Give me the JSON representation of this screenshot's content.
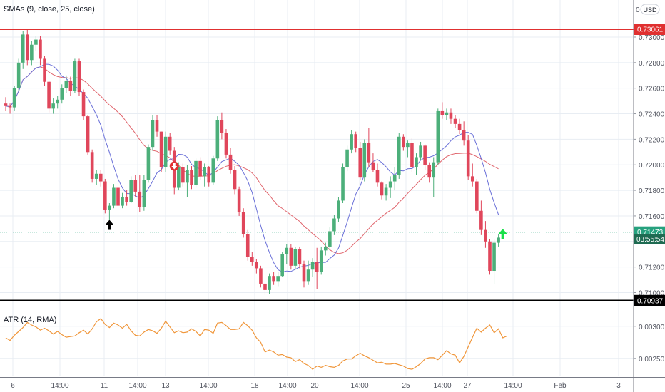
{
  "indicators": {
    "sma_legend": "SMAs (9, close, 25, close)",
    "atr_legend": "ATR (14, RMA)",
    "currency_button": "USD",
    "top_price_label": "0"
  },
  "price_badges": {
    "resistance": "0.73061",
    "support": "0.70937",
    "last_price": "0.71473",
    "countdown": "03:55:54"
  },
  "colors": {
    "up": "#4caf7a",
    "down": "#e0465b",
    "sma_fast": "#6a70d8",
    "sma_slow": "#e0646c",
    "atr": "#f0963a",
    "resistance": "#e03030",
    "support": "#000000",
    "last_price": "#26a17e",
    "countdown_bg": "#1f6b52",
    "grid": "#e8edf3",
    "axis_text": "#50535e"
  },
  "chart_data": [
    {
      "type": "candlestick",
      "title": "",
      "y_ticks": [
        0.73,
        0.728,
        0.726,
        0.724,
        0.722,
        0.72,
        0.718,
        0.716,
        0.714,
        0.712,
        0.71
      ],
      "y_tick_labels": [
        "0.73000",
        "0.72800",
        "0.72600",
        "0.72400",
        "0.72200",
        "0.72000",
        "0.71800",
        "0.71600",
        "0.71400",
        "0.71200",
        "0.71000"
      ],
      "ylim": [
        0.7088,
        0.7329
      ],
      "x_tick_labels": [
        "6",
        "14:00",
        "11",
        "14:00",
        "13",
        "14:00",
        "18",
        "14:00",
        "20",
        "14:00",
        "25",
        "14:00",
        "27",
        "14:00",
        "Feb",
        "3"
      ],
      "horizontal_lines": [
        {
          "name": "resistance",
          "value": 0.73061
        },
        {
          "name": "support",
          "value": 0.70937
        },
        {
          "name": "last",
          "value": 0.71473
        }
      ],
      "markers": [
        {
          "type": "arrow-up",
          "color": "black",
          "candle": 24,
          "value": 0.7153
        },
        {
          "type": "arrow-down-circle",
          "color": "red",
          "candle": 39,
          "value": 0.7199
        },
        {
          "type": "arrow-up",
          "color": "green",
          "candle": 115,
          "value": 0.7146
        }
      ],
      "candles": [
        [
          0.7248,
          0.7253,
          0.7242,
          0.7246
        ],
        [
          0.7246,
          0.7248,
          0.724,
          0.7245
        ],
        [
          0.7245,
          0.7262,
          0.7242,
          0.726
        ],
        [
          0.726,
          0.7283,
          0.7258,
          0.728
        ],
        [
          0.728,
          0.7305,
          0.7275,
          0.7302
        ],
        [
          0.7302,
          0.7306,
          0.7278,
          0.7282
        ],
        [
          0.7282,
          0.7297,
          0.7278,
          0.7294
        ],
        [
          0.7294,
          0.7301,
          0.7289,
          0.7298
        ],
        [
          0.7298,
          0.7301,
          0.7278,
          0.7283
        ],
        [
          0.7283,
          0.7285,
          0.7262,
          0.7265
        ],
        [
          0.7265,
          0.7266,
          0.7241,
          0.7244
        ],
        [
          0.7244,
          0.7252,
          0.724,
          0.7248
        ],
        [
          0.7248,
          0.7254,
          0.7244,
          0.7251
        ],
        [
          0.7251,
          0.7263,
          0.7248,
          0.726
        ],
        [
          0.726,
          0.727,
          0.7256,
          0.7266
        ],
        [
          0.7266,
          0.7269,
          0.7254,
          0.7258
        ],
        [
          0.7258,
          0.7283,
          0.7256,
          0.7281
        ],
        [
          0.7281,
          0.7283,
          0.7254,
          0.7257
        ],
        [
          0.7257,
          0.7259,
          0.7235,
          0.7238
        ],
        [
          0.7238,
          0.7239,
          0.7208,
          0.721
        ],
        [
          0.721,
          0.7212,
          0.7186,
          0.7189
        ],
        [
          0.7189,
          0.7196,
          0.7184,
          0.7193
        ],
        [
          0.7193,
          0.7196,
          0.7183,
          0.7187
        ],
        [
          0.7187,
          0.7189,
          0.7162,
          0.7165
        ],
        [
          0.7165,
          0.717,
          0.7156,
          0.7168
        ],
        [
          0.7168,
          0.7185,
          0.7166,
          0.7182
        ],
        [
          0.7182,
          0.7185,
          0.7165,
          0.7168
        ],
        [
          0.7168,
          0.7178,
          0.7166,
          0.7175
        ],
        [
          0.7175,
          0.718,
          0.7168,
          0.7171
        ],
        [
          0.7171,
          0.7191,
          0.717,
          0.7188
        ],
        [
          0.7188,
          0.7192,
          0.7175,
          0.7179
        ],
        [
          0.7179,
          0.7192,
          0.7163,
          0.7167
        ],
        [
          0.7167,
          0.7192,
          0.7164,
          0.7188
        ],
        [
          0.7188,
          0.7216,
          0.7186,
          0.7214
        ],
        [
          0.7214,
          0.7239,
          0.7211,
          0.7235
        ],
        [
          0.7235,
          0.7239,
          0.7222,
          0.7226
        ],
        [
          0.7226,
          0.7226,
          0.7194,
          0.7198
        ],
        [
          0.7198,
          0.7226,
          0.7194,
          0.7222
        ],
        [
          0.7222,
          0.7225,
          0.7208,
          0.7211
        ],
        [
          0.7211,
          0.7214,
          0.7177,
          0.7182
        ],
        [
          0.7182,
          0.7202,
          0.718,
          0.7198
        ],
        [
          0.7198,
          0.7201,
          0.7183,
          0.7186
        ],
        [
          0.7186,
          0.72,
          0.7175,
          0.7196
        ],
        [
          0.7196,
          0.7199,
          0.7181,
          0.7184
        ],
        [
          0.7184,
          0.7205,
          0.7182,
          0.7203
        ],
        [
          0.7203,
          0.7206,
          0.7188,
          0.7191
        ],
        [
          0.7191,
          0.7201,
          0.7183,
          0.7198
        ],
        [
          0.7198,
          0.7199,
          0.7183,
          0.7186
        ],
        [
          0.7186,
          0.7207,
          0.7184,
          0.7205
        ],
        [
          0.7205,
          0.7238,
          0.7203,
          0.7235
        ],
        [
          0.7235,
          0.7241,
          0.722,
          0.7225
        ],
        [
          0.7225,
          0.7228,
          0.7205,
          0.7208
        ],
        [
          0.7208,
          0.7213,
          0.7193,
          0.7196
        ],
        [
          0.7196,
          0.7199,
          0.7177,
          0.7181
        ],
        [
          0.7181,
          0.7183,
          0.716,
          0.7163
        ],
        [
          0.7163,
          0.7166,
          0.7143,
          0.7146
        ],
        [
          0.7146,
          0.7149,
          0.7125,
          0.7128
        ],
        [
          0.7128,
          0.7132,
          0.7121,
          0.7124
        ],
        [
          0.7124,
          0.7126,
          0.7115,
          0.7119
        ],
        [
          0.7119,
          0.7121,
          0.7104,
          0.7107
        ],
        [
          0.7107,
          0.7109,
          0.7098,
          0.7102
        ],
        [
          0.7102,
          0.7115,
          0.7099,
          0.7113
        ],
        [
          0.7113,
          0.7116,
          0.7106,
          0.7109
        ],
        [
          0.7109,
          0.7116,
          0.7105,
          0.7113
        ],
        [
          0.7113,
          0.7132,
          0.7112,
          0.713
        ],
        [
          0.713,
          0.7138,
          0.7122,
          0.7135
        ],
        [
          0.7135,
          0.7138,
          0.7118,
          0.7121
        ],
        [
          0.7121,
          0.7136,
          0.7118,
          0.7134
        ],
        [
          0.7134,
          0.7136,
          0.7119,
          0.7122
        ],
        [
          0.7122,
          0.7125,
          0.7104,
          0.7109
        ],
        [
          0.7109,
          0.7125,
          0.7106,
          0.7118
        ],
        [
          0.7118,
          0.7127,
          0.7112,
          0.7124
        ],
        [
          0.7124,
          0.7135,
          0.7103,
          0.7116
        ],
        [
          0.7116,
          0.7136,
          0.7114,
          0.7133
        ],
        [
          0.7133,
          0.7139,
          0.7129,
          0.7136
        ],
        [
          0.7136,
          0.7151,
          0.7133,
          0.7148
        ],
        [
          0.7148,
          0.7161,
          0.7145,
          0.7158
        ],
        [
          0.7158,
          0.7175,
          0.7155,
          0.7172
        ],
        [
          0.7172,
          0.7201,
          0.717,
          0.7198
        ],
        [
          0.7198,
          0.7215,
          0.7195,
          0.7212
        ],
        [
          0.7212,
          0.7227,
          0.7209,
          0.7224
        ],
        [
          0.7224,
          0.7226,
          0.721,
          0.7213
        ],
        [
          0.7213,
          0.7218,
          0.7188,
          0.719
        ],
        [
          0.719,
          0.722,
          0.7187,
          0.7217
        ],
        [
          0.7217,
          0.7229,
          0.7198,
          0.7202
        ],
        [
          0.7202,
          0.7209,
          0.7194,
          0.7196
        ],
        [
          0.7196,
          0.7201,
          0.7183,
          0.7186
        ],
        [
          0.7186,
          0.7187,
          0.7173,
          0.7176
        ],
        [
          0.7176,
          0.7185,
          0.7172,
          0.7182
        ],
        [
          0.7182,
          0.7191,
          0.7174,
          0.7187
        ],
        [
          0.7187,
          0.7198,
          0.718,
          0.7192
        ],
        [
          0.7192,
          0.7225,
          0.7189,
          0.7222
        ],
        [
          0.7222,
          0.7224,
          0.7211,
          0.7214
        ],
        [
          0.7214,
          0.7219,
          0.7206,
          0.7217
        ],
        [
          0.7217,
          0.7221,
          0.7194,
          0.7198
        ],
        [
          0.7198,
          0.7209,
          0.7192,
          0.7206
        ],
        [
          0.7206,
          0.7218,
          0.7204,
          0.7215
        ],
        [
          0.7215,
          0.7216,
          0.7196,
          0.72
        ],
        [
          0.72,
          0.7202,
          0.7186,
          0.719
        ],
        [
          0.719,
          0.7206,
          0.7175,
          0.7202
        ],
        [
          0.7202,
          0.7244,
          0.72,
          0.7242
        ],
        [
          0.7242,
          0.7249,
          0.7236,
          0.7239
        ],
        [
          0.7239,
          0.7244,
          0.7235,
          0.7241
        ],
        [
          0.7241,
          0.7244,
          0.7232,
          0.7236
        ],
        [
          0.7236,
          0.7239,
          0.7229,
          0.7232
        ],
        [
          0.7232,
          0.7236,
          0.7224,
          0.7227
        ],
        [
          0.7227,
          0.7234,
          0.7215,
          0.7219
        ],
        [
          0.7219,
          0.7223,
          0.7188,
          0.7191
        ],
        [
          0.7191,
          0.7201,
          0.7183,
          0.7187
        ],
        [
          0.7187,
          0.7189,
          0.7162,
          0.7164
        ],
        [
          0.7164,
          0.7172,
          0.7145,
          0.7149
        ],
        [
          0.7149,
          0.7156,
          0.7135,
          0.714
        ],
        [
          0.714,
          0.7142,
          0.7114,
          0.7117
        ],
        [
          0.7117,
          0.7142,
          0.7107,
          0.7139
        ],
        [
          0.7139,
          0.7146,
          0.7136,
          0.7143
        ]
      ],
      "sma_fast_label": "SMA 9",
      "sma_slow_label": "SMA 25"
    },
    {
      "type": "line",
      "title": "ATR (14, RMA)",
      "y_ticks": [
        0.003,
        0.0025
      ],
      "y_tick_labels": [
        "0.00300",
        "0.00250"
      ],
      "ylim": [
        0.00222,
        0.00322
      ],
      "values": [
        0.00282,
        0.00278,
        0.00286,
        0.00292,
        0.00298,
        0.00306,
        0.00302,
        0.00299,
        0.00294,
        0.00297,
        0.00293,
        0.00288,
        0.00292,
        0.00287,
        0.00283,
        0.00284,
        0.00285,
        0.0029,
        0.00294,
        0.00288,
        0.00296,
        0.00307,
        0.00312,
        0.00303,
        0.00298,
        0.00305,
        0.00302,
        0.00297,
        0.00303,
        0.00293,
        0.00286,
        0.00285,
        0.00291,
        0.00295,
        0.00293,
        0.00289,
        0.00297,
        0.00308,
        0.00299,
        0.0029,
        0.00293,
        0.0029,
        0.00291,
        0.00296,
        0.00292,
        0.00285,
        0.00295,
        0.00294,
        0.00289,
        0.00305,
        0.00306,
        0.00301,
        0.00295,
        0.00295,
        0.00296,
        0.00306,
        0.00301,
        0.00294,
        0.00282,
        0.00275,
        0.0026,
        0.00263,
        0.0026,
        0.00255,
        0.00256,
        0.00252,
        0.00251,
        0.00245,
        0.00248,
        0.00242,
        0.00239,
        0.00233,
        0.00238,
        0.00236,
        0.00239,
        0.00237,
        0.00236,
        0.00239,
        0.00246,
        0.00249,
        0.00249,
        0.00254,
        0.00258,
        0.00254,
        0.00251,
        0.00247,
        0.00243,
        0.00244,
        0.00241,
        0.00241,
        0.00242,
        0.0024,
        0.00238,
        0.00234,
        0.00233,
        0.00237,
        0.00242,
        0.00249,
        0.00251,
        0.00251,
        0.00248,
        0.00255,
        0.00262,
        0.00257,
        0.00255,
        0.00243,
        0.00253,
        0.00268,
        0.00283,
        0.00297,
        0.00291,
        0.00297,
        0.00302,
        0.0029,
        0.00296,
        0.00282,
        0.00285
      ]
    }
  ]
}
